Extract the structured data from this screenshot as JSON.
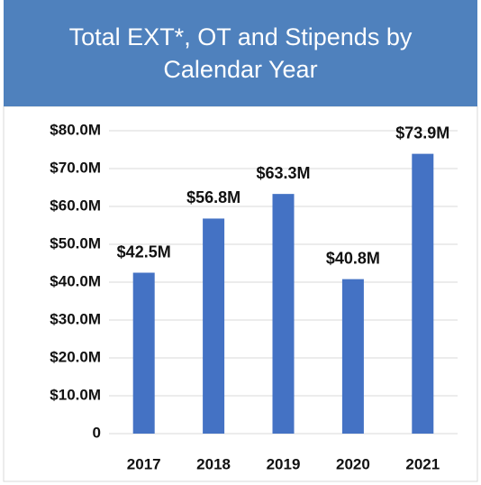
{
  "chart_data": {
    "type": "bar",
    "title": "Total EXT*, OT and Stipends by Calendar Year",
    "categories": [
      "2017",
      "2018",
      "2019",
      "2020",
      "2021"
    ],
    "values": [
      42.5,
      56.8,
      63.3,
      40.8,
      73.9
    ],
    "value_labels": [
      "$42.5M",
      "$56.8M",
      "$63.3M",
      "$40.8M",
      "$73.9M"
    ],
    "color": "#4472c4",
    "ylim": [
      0,
      80
    ],
    "yticks": [
      0,
      {
        "value": 10,
        "label": "$10.0M"
      },
      {
        "value": 20,
        "label": "$20.0M"
      },
      {
        "value": 30,
        "label": "$30.0M"
      },
      {
        "value": 40,
        "label": "$40.0M"
      },
      {
        "value": 50,
        "label": "$50.0M"
      },
      {
        "value": 60,
        "label": "$60.0M"
      },
      {
        "value": 70,
        "label": "$70.0M"
      },
      {
        "value": 80,
        "label": "$80.0M"
      }
    ],
    "grid": true
  }
}
